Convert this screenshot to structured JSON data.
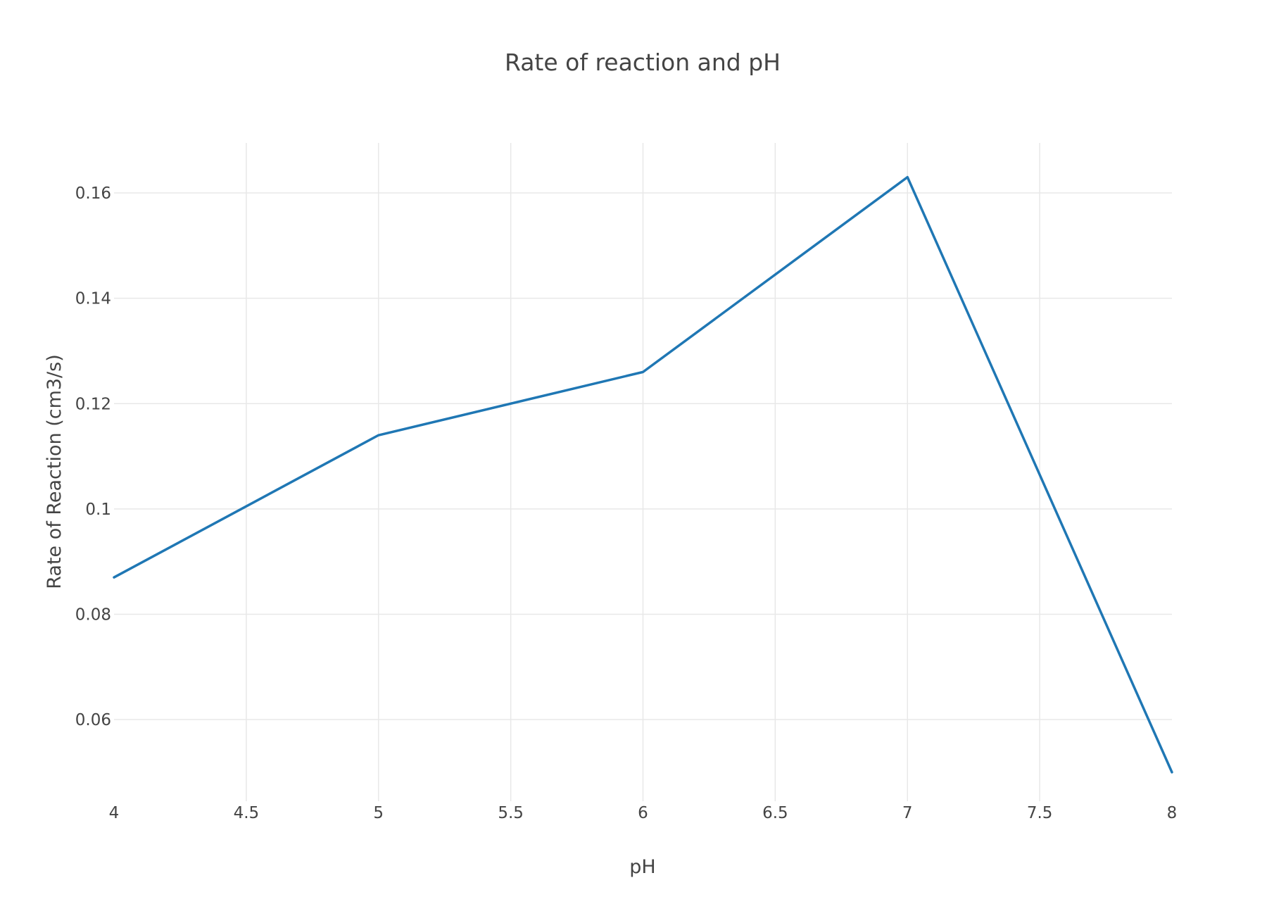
{
  "chart_data": {
    "type": "line",
    "title": "Rate of reaction and pH",
    "xlabel": "pH",
    "ylabel": "Rate of Reaction (cm3/s)",
    "x": [
      4,
      5,
      6,
      7,
      8
    ],
    "series": [
      {
        "values": [
          0.087,
          0.114,
          0.126,
          0.163,
          0.05
        ]
      }
    ],
    "xlim": [
      4,
      8
    ],
    "ylim": [
      0.0445,
      0.1695
    ],
    "x_ticks": [
      4,
      4.5,
      5,
      5.5,
      6,
      6.5,
      7,
      7.5,
      8
    ],
    "x_tick_labels": [
      "4",
      "4.5",
      "5",
      "5.5",
      "6",
      "6.5",
      "7",
      "7.5",
      "8"
    ],
    "y_ticks": [
      0.06,
      0.08,
      0.1,
      0.12,
      0.14,
      0.16
    ],
    "y_tick_labels": [
      "0.06",
      "0.08",
      "0.1",
      "0.12",
      "0.14",
      "0.16"
    ],
    "grid": true,
    "line_color": "#1f77b4"
  }
}
